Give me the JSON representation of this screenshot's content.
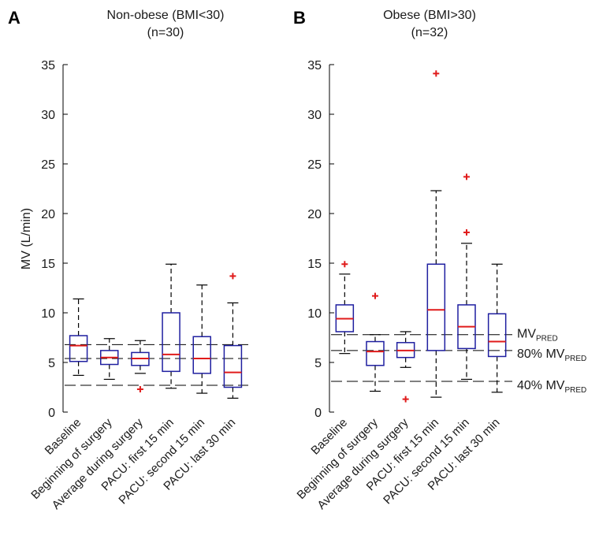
{
  "chart_data": [
    {
      "type": "box",
      "panel": "A",
      "title": "Non-obese (BMI<30)",
      "subtitle": "(n=30)",
      "ylabel": "MV (L/min)",
      "ylim": [
        0,
        35
      ],
      "yticks": [
        0,
        5,
        10,
        15,
        20,
        25,
        30,
        35
      ],
      "categories": [
        "Baseline",
        "Beginning of surgery",
        "Average during surgery",
        "PACU: first 15 min",
        "PACU: second 15 min",
        "PACU: last 30 min"
      ],
      "boxes": [
        {
          "whisker_low": 3.7,
          "q1": 5.1,
          "median": 6.7,
          "q3": 7.7,
          "whisker_high": 11.4,
          "outliers": []
        },
        {
          "whisker_low": 3.3,
          "q1": 4.8,
          "median": 5.5,
          "q3": 6.2,
          "whisker_high": 7.4,
          "outliers": []
        },
        {
          "whisker_low": 3.9,
          "q1": 4.7,
          "median": 5.4,
          "q3": 6.0,
          "whisker_high": 7.2,
          "outliers": [
            2.3
          ]
        },
        {
          "whisker_low": 2.4,
          "q1": 4.1,
          "median": 5.8,
          "q3": 10.0,
          "whisker_high": 14.9,
          "outliers": []
        },
        {
          "whisker_low": 1.9,
          "q1": 3.9,
          "median": 5.4,
          "q3": 7.6,
          "whisker_high": 12.8,
          "outliers": []
        },
        {
          "whisker_low": 1.4,
          "q1": 2.5,
          "median": 4.0,
          "q3": 6.7,
          "whisker_high": 11.0,
          "outliers": [
            13.7
          ]
        }
      ],
      "reference_lines": [
        6.8,
        5.4,
        2.7
      ]
    },
    {
      "type": "box",
      "panel": "B",
      "title": "Obese (BMI>30)",
      "subtitle": "(n=32)",
      "ylim": [
        0,
        35
      ],
      "yticks": [
        0,
        5,
        10,
        15,
        20,
        25,
        30,
        35
      ],
      "categories": [
        "Baseline",
        "Beginning of surgery",
        "Average during surgery",
        "PACU: first 15 min",
        "PACU: second 15 min",
        "PACU: last 30 min"
      ],
      "boxes": [
        {
          "whisker_low": 5.9,
          "q1": 8.1,
          "median": 9.4,
          "q3": 10.8,
          "whisker_high": 13.9,
          "outliers": [
            14.9
          ]
        },
        {
          "whisker_low": 2.1,
          "q1": 4.7,
          "median": 6.1,
          "q3": 7.1,
          "whisker_high": 7.8,
          "outliers": [
            11.7
          ]
        },
        {
          "whisker_low": 4.5,
          "q1": 5.5,
          "median": 6.2,
          "q3": 7.0,
          "whisker_high": 8.1,
          "outliers": [
            1.3
          ]
        },
        {
          "whisker_low": 1.5,
          "q1": 6.2,
          "median": 10.3,
          "q3": 14.9,
          "whisker_high": 22.3,
          "outliers": [
            34.1
          ]
        },
        {
          "whisker_low": 3.3,
          "q1": 6.4,
          "median": 8.6,
          "q3": 10.8,
          "whisker_high": 17.0,
          "outliers": [
            18.1,
            23.7
          ]
        },
        {
          "whisker_low": 2.0,
          "q1": 5.6,
          "median": 7.1,
          "q3": 9.9,
          "whisker_high": 14.9,
          "outliers": []
        }
      ],
      "reference_lines": [
        {
          "value": 7.8,
          "label": "MV",
          "sub": "PRED"
        },
        {
          "value": 6.2,
          "label": "80% MV",
          "sub": "PRED"
        },
        {
          "value": 3.1,
          "label": "40% MV",
          "sub": "PRED"
        }
      ]
    }
  ]
}
